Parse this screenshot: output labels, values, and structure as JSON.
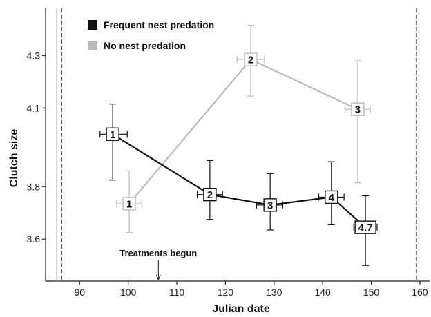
{
  "chart_data": {
    "type": "line",
    "xlabel": "Julian date",
    "ylabel": "Clutch size",
    "xlim": [
      83,
      162
    ],
    "ylim": [
      3.44,
      4.48
    ],
    "xticks": [
      90,
      100,
      110,
      120,
      130,
      140,
      150,
      160
    ],
    "yticks": [
      3.6,
      3.8,
      4.1,
      4.3
    ],
    "ytick_labels": [
      "3.6",
      "3.8",
      "4.1",
      "4.3"
    ],
    "grid": false,
    "legend_position": "top-left",
    "vlines": [
      {
        "x": 85.3,
        "style": "solid",
        "color": "#bbbbbb"
      },
      {
        "x": 86.3,
        "style": "dashed",
        "color": "#333333"
      },
      {
        "x": 159.3,
        "style": "dashed",
        "color": "#333333"
      },
      {
        "x": 159.8,
        "style": "solid",
        "color": "#bbbbbb"
      }
    ],
    "annotation": {
      "text": "Treatments begun",
      "x": 106.2
    },
    "series": [
      {
        "name": "No nest predation",
        "color": "#bbbbbb",
        "points": [
          {
            "x": 100.2,
            "y": 3.735,
            "label": "1",
            "yerr_low": 3.625,
            "yerr_high": 3.86,
            "xerr_low": 97.6,
            "xerr_high": 102.8
          },
          {
            "x": 125.2,
            "y": 4.285,
            "label": "2",
            "yerr_low": 4.145,
            "yerr_high": 4.415,
            "xerr_low": 122.4,
            "xerr_high": 128.0
          },
          {
            "x": 147.2,
            "y": 4.095,
            "label": "3",
            "yerr_low": 3.815,
            "yerr_high": 4.28,
            "xerr_low": 144.6,
            "xerr_high": 149.8
          }
        ]
      },
      {
        "name": "Frequent nest predation",
        "color": "#111111",
        "points": [
          {
            "x": 96.8,
            "y": 4.0,
            "label": "1",
            "yerr_low": 3.825,
            "yerr_high": 4.115,
            "xerr_low": 94.2,
            "xerr_high": 99.8
          },
          {
            "x": 116.8,
            "y": 3.77,
            "label": "2",
            "yerr_low": 3.675,
            "yerr_high": 3.9,
            "xerr_low": 114.2,
            "xerr_high": 119.4
          },
          {
            "x": 129.2,
            "y": 3.73,
            "label": "3",
            "yerr_low": 3.635,
            "yerr_high": 3.85,
            "xerr_low": 126.4,
            "xerr_high": 131.8
          },
          {
            "x": 141.8,
            "y": 3.76,
            "label": "4",
            "yerr_low": 3.655,
            "yerr_high": 3.895,
            "xerr_low": 139.2,
            "xerr_high": 144.4
          },
          {
            "x": 148.8,
            "y": 3.645,
            "label": "4.7",
            "yerr_low": 3.5,
            "yerr_high": 3.765,
            "xerr_low": 146.4,
            "xerr_high": 151.2
          }
        ]
      }
    ]
  }
}
